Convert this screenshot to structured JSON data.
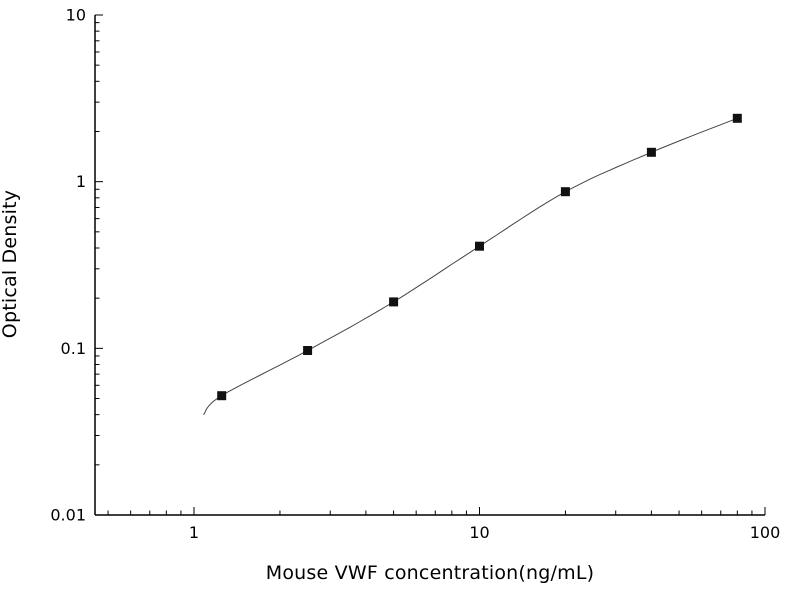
{
  "page": {
    "background": "#ffffff"
  },
  "chart_data": {
    "type": "scatter",
    "title": "",
    "xlabel": "Mouse VWF concentration(ng/mL)",
    "ylabel": "Optical Density",
    "xscale": "log",
    "yscale": "log",
    "xlim": [
      0.45,
      100
    ],
    "ylim": [
      0.01,
      10
    ],
    "x": [
      1.25,
      2.5,
      5,
      10,
      20,
      40,
      80
    ],
    "y": [
      0.052,
      0.097,
      0.19,
      0.41,
      0.87,
      1.5,
      2.4
    ],
    "fit_curve": {
      "present": true,
      "start": {
        "x": 1.08,
        "y": 0.04
      }
    },
    "x_major_ticks": [
      1,
      10,
      100
    ],
    "x_tick_labels": [
      "1",
      "10",
      "100"
    ],
    "y_major_ticks": [
      0.01,
      0.1,
      1,
      10
    ],
    "y_tick_labels": [
      "0.01",
      "0.1",
      "1",
      "10"
    ],
    "grid": false,
    "legend": null,
    "marker": "filled-square",
    "marker_size": 9,
    "colors": {
      "marker": "#111111",
      "curve": "#444444",
      "axis": "#000000",
      "text": "#000000"
    }
  }
}
